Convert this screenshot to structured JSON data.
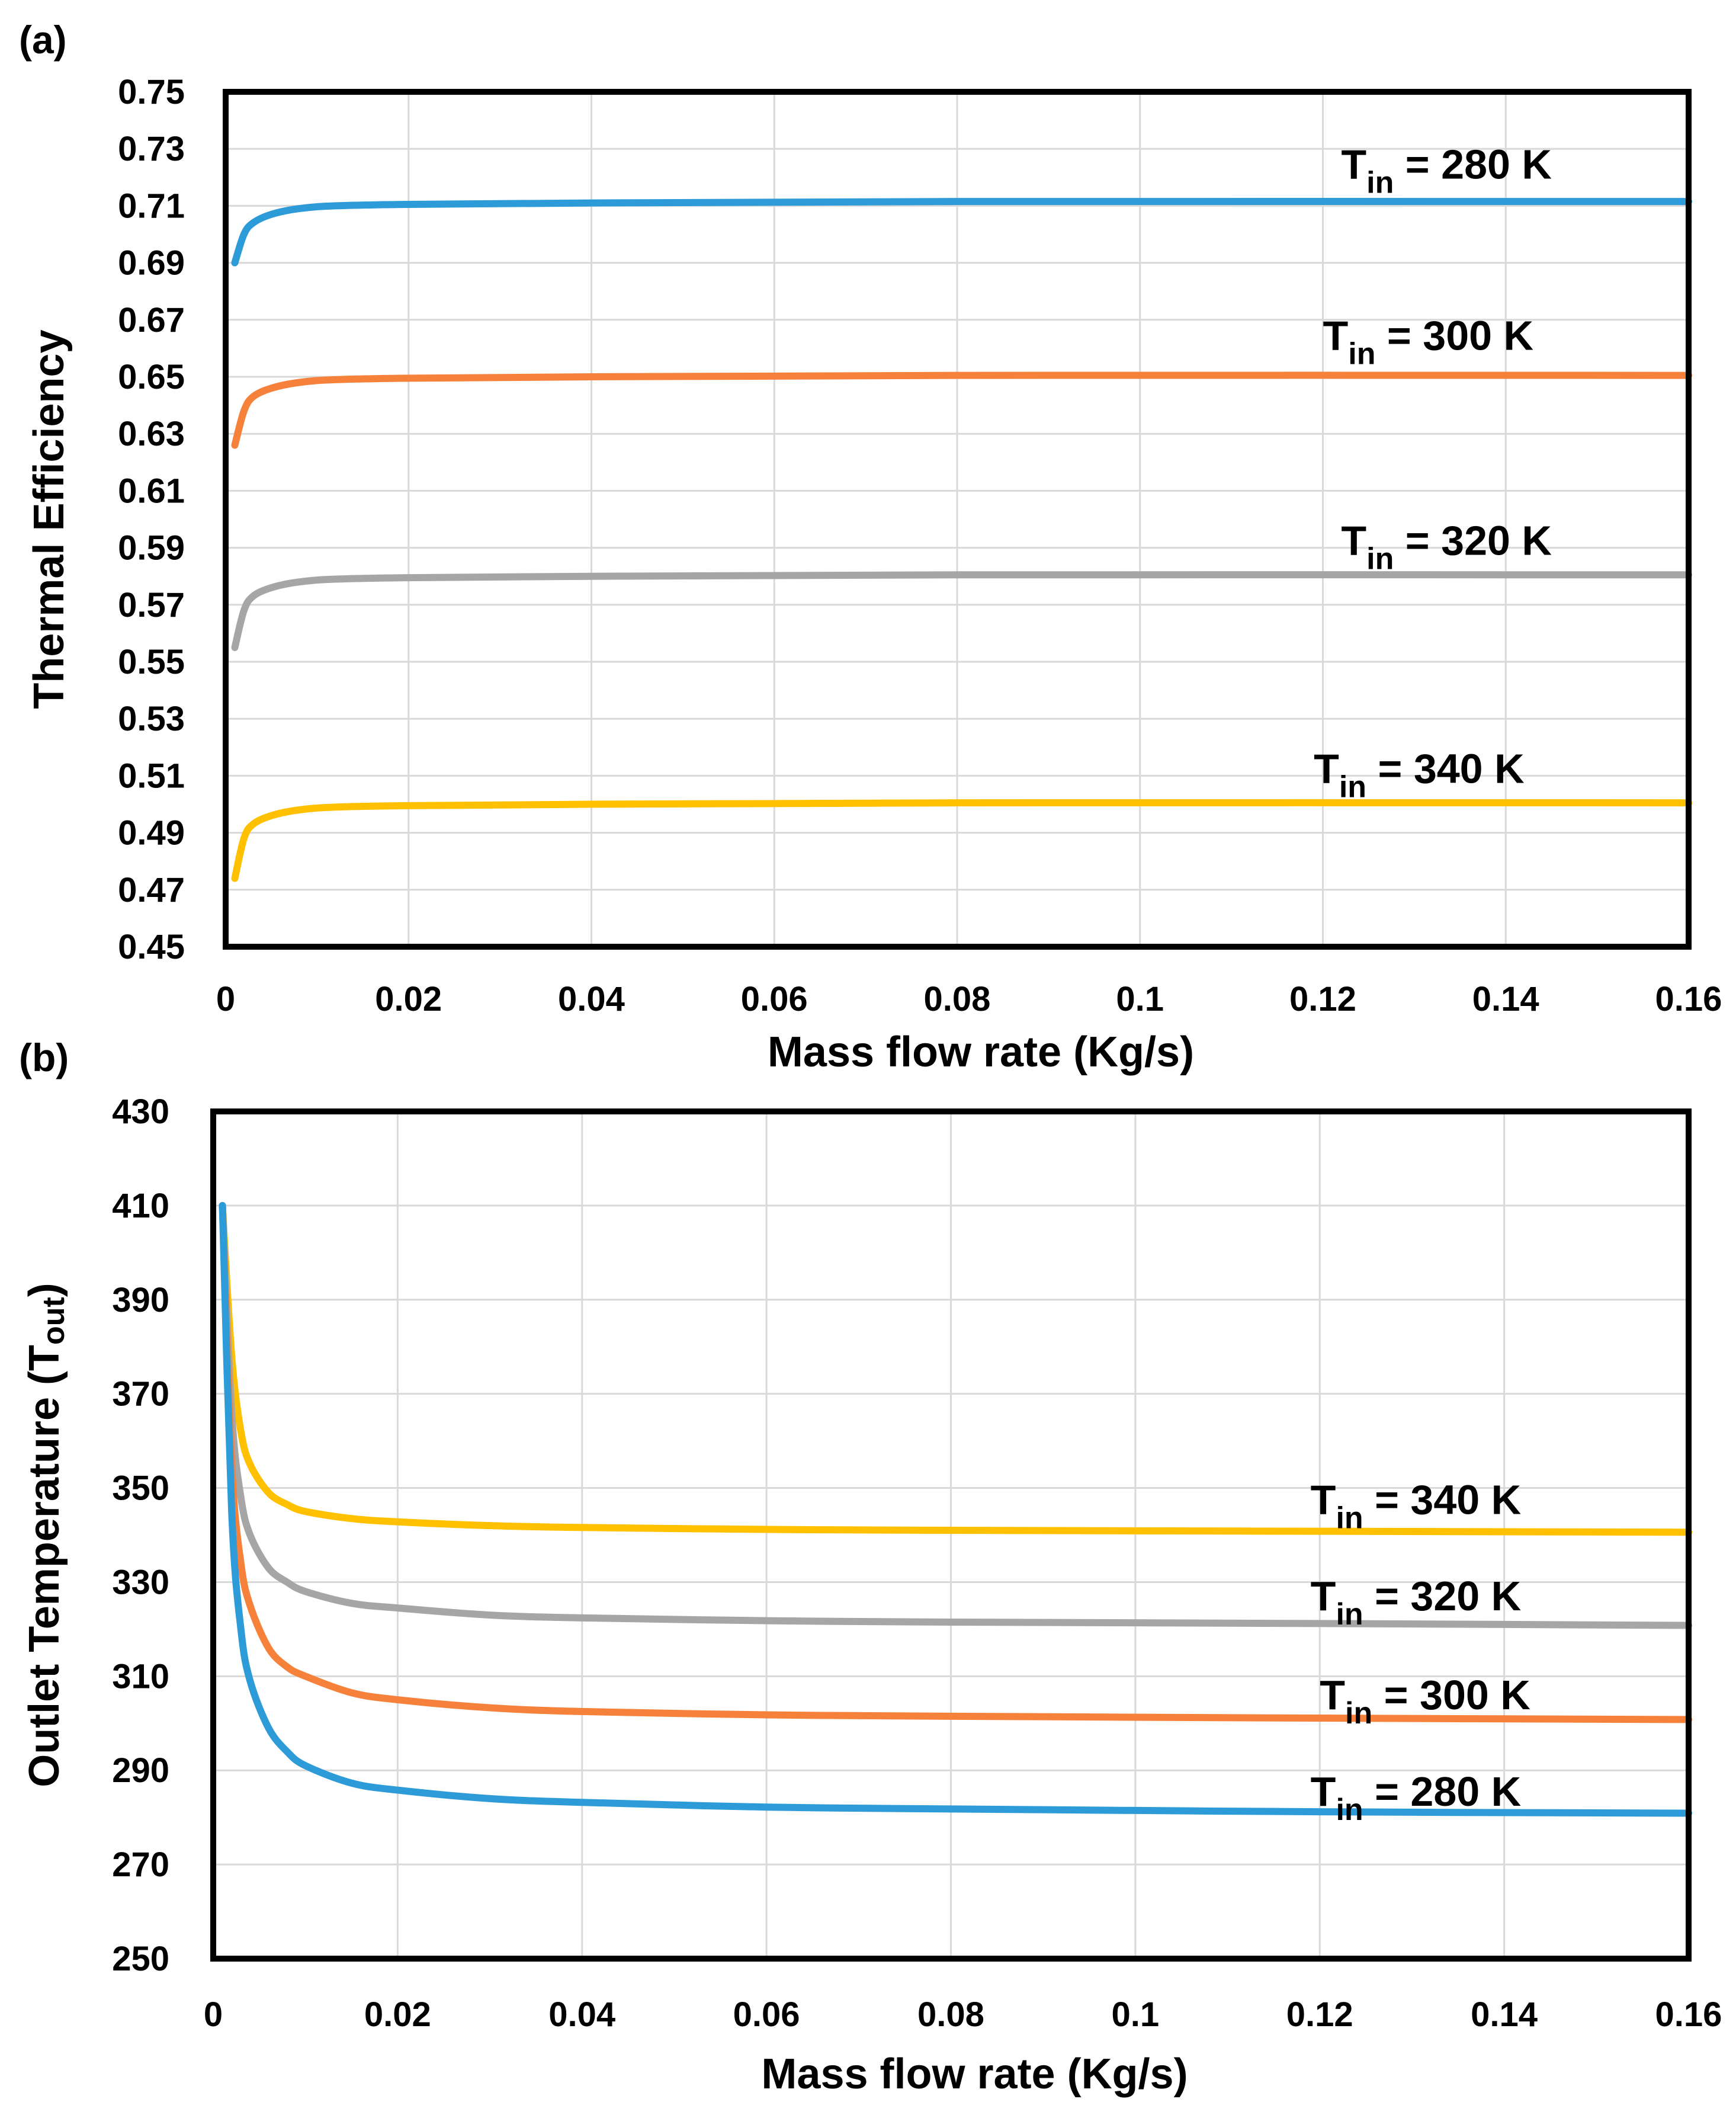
{
  "chart_data": [
    {
      "panel_label": "(a)",
      "type": "line",
      "xlabel": "Mass flow rate (Kg/s)",
      "ylabel": "Thermal Efficiency",
      "xlim": [
        0,
        0.16
      ],
      "ylim": [
        0.45,
        0.75
      ],
      "xticks": [
        0,
        0.02,
        0.04,
        0.06,
        0.08,
        0.1,
        0.12,
        0.14,
        0.16
      ],
      "xtick_labels": [
        "0",
        "0.02",
        "0.04",
        "0.06",
        "0.08",
        "0.1",
        "0.12",
        "0.14",
        "0.16"
      ],
      "yticks": [
        0.45,
        0.47,
        0.49,
        0.51,
        0.53,
        0.55,
        0.57,
        0.59,
        0.61,
        0.63,
        0.65,
        0.67,
        0.69,
        0.71,
        0.73,
        0.75
      ],
      "ytick_labels": [
        "0.45",
        "0.47",
        "0.49",
        "0.51",
        "0.53",
        "0.55",
        "0.57",
        "0.59",
        "0.61",
        "0.63",
        "0.65",
        "0.67",
        "0.69",
        "0.71",
        "0.73",
        "0.75"
      ],
      "grid": true,
      "series": [
        {
          "name": "Tin = 280 K",
          "label_main": "T",
          "label_sub": "in",
          "label_rest": " = 280 K",
          "color": "#2E9BD9",
          "x": [
            0.001,
            0.002,
            0.003,
            0.005,
            0.008,
            0.012,
            0.02,
            0.04,
            0.08,
            0.16
          ],
          "y": [
            0.69,
            0.7,
            0.704,
            0.707,
            0.709,
            0.71,
            0.7105,
            0.711,
            0.7115,
            0.7115
          ]
        },
        {
          "name": "Tin = 300 K",
          "label_main": "T",
          "label_sub": "in",
          "label_rest": " = 300 K",
          "color": "#F5813A",
          "x": [
            0.001,
            0.002,
            0.003,
            0.005,
            0.008,
            0.012,
            0.02,
            0.04,
            0.08,
            0.16
          ],
          "y": [
            0.626,
            0.638,
            0.643,
            0.646,
            0.648,
            0.649,
            0.6495,
            0.65,
            0.6505,
            0.6505
          ]
        },
        {
          "name": "Tin = 320 K",
          "label_main": "T",
          "label_sub": "in",
          "label_rest": " = 320 K",
          "color": "#A6A6A6",
          "x": [
            0.001,
            0.002,
            0.003,
            0.005,
            0.008,
            0.012,
            0.02,
            0.04,
            0.08,
            0.16
          ],
          "y": [
            0.555,
            0.568,
            0.573,
            0.576,
            0.578,
            0.579,
            0.5795,
            0.58,
            0.5805,
            0.5805
          ]
        },
        {
          "name": "Tin = 340 K",
          "label_main": "T",
          "label_sub": "in",
          "label_rest": " = 340 K",
          "color": "#FFC000",
          "x": [
            0.001,
            0.002,
            0.003,
            0.005,
            0.008,
            0.012,
            0.02,
            0.04,
            0.08,
            0.16
          ],
          "y": [
            0.474,
            0.488,
            0.493,
            0.496,
            0.498,
            0.499,
            0.4995,
            0.5,
            0.5005,
            0.5005
          ]
        }
      ],
      "label_positions": [
        {
          "series": 0,
          "x": 0.122,
          "y": 0.7195
        },
        {
          "series": 1,
          "x": 0.12,
          "y": 0.6595
        },
        {
          "series": 2,
          "x": 0.122,
          "y": 0.5875
        },
        {
          "series": 3,
          "x": 0.119,
          "y": 0.5075
        }
      ]
    },
    {
      "panel_label": "(b)",
      "type": "line",
      "xlabel": "Mass flow rate (Kg/s)",
      "ylabel_main": "Outlet Temperature  (T",
      "ylabel_sub": "out",
      "ylabel_end": ")",
      "xlim": [
        0,
        0.16
      ],
      "ylim": [
        250,
        430
      ],
      "xticks": [
        0,
        0.02,
        0.04,
        0.06,
        0.08,
        0.1,
        0.12,
        0.14,
        0.16
      ],
      "xtick_labels": [
        "0",
        "0.02",
        "0.04",
        "0.06",
        "0.08",
        "0.1",
        "0.12",
        "0.14",
        "0.16"
      ],
      "yticks": [
        250,
        270,
        290,
        310,
        330,
        350,
        370,
        390,
        410,
        430
      ],
      "ytick_labels": [
        "250",
        "270",
        "290",
        "310",
        "330",
        "350",
        "370",
        "390",
        "410",
        "430"
      ],
      "grid": true,
      "series": [
        {
          "name": "Tin = 340 K",
          "label_main": "T",
          "label_sub": "in",
          "label_rest": " = 340 K",
          "color": "#FFC000",
          "x": [
            0.001,
            0.002,
            0.003,
            0.004,
            0.006,
            0.008,
            0.01,
            0.015,
            0.02,
            0.03,
            0.04,
            0.06,
            0.08,
            0.12,
            0.16
          ],
          "y": [
            410,
            378,
            362,
            355,
            349,
            346.5,
            345,
            343.5,
            342.8,
            342,
            341.6,
            341.2,
            341,
            340.8,
            340.6
          ]
        },
        {
          "name": "Tin = 320 K",
          "label_main": "T",
          "label_sub": "in",
          "label_rest": " = 320 K",
          "color": "#A6A6A6",
          "x": [
            0.001,
            0.002,
            0.003,
            0.004,
            0.006,
            0.008,
            0.01,
            0.015,
            0.02,
            0.03,
            0.04,
            0.06,
            0.08,
            0.12,
            0.16
          ],
          "y": [
            410,
            366,
            348,
            340,
            333,
            330,
            328,
            325.5,
            324.5,
            323,
            322.4,
            321.8,
            321.5,
            321.2,
            320.8
          ]
        },
        {
          "name": "Tin = 300 K",
          "label_main": "T",
          "label_sub": "in",
          "label_rest": " = 300 K",
          "color": "#F5813A",
          "x": [
            0.001,
            0.002,
            0.003,
            0.004,
            0.006,
            0.008,
            0.01,
            0.015,
            0.02,
            0.03,
            0.04,
            0.06,
            0.08,
            0.12,
            0.16
          ],
          "y": [
            410,
            355,
            334,
            325,
            316,
            312,
            310,
            306.5,
            305,
            303.3,
            302.5,
            301.8,
            301.5,
            301.1,
            300.8
          ]
        },
        {
          "name": "Tin = 280 K",
          "label_main": "T",
          "label_sub": "in",
          "label_rest": " = 280 K",
          "color": "#2E9BD9",
          "x": [
            0.001,
            0.002,
            0.003,
            0.004,
            0.006,
            0.008,
            0.01,
            0.015,
            0.02,
            0.03,
            0.04,
            0.06,
            0.08,
            0.12,
            0.16
          ],
          "y": [
            410,
            345,
            320,
            309,
            299,
            294,
            291,
            287.3,
            285.8,
            284,
            283.2,
            282.2,
            281.8,
            281.2,
            280.9
          ]
        }
      ],
      "label_positions": [
        {
          "series": 0,
          "x": 0.119,
          "y": 344.5
        },
        {
          "series": 1,
          "x": 0.119,
          "y": 324
        },
        {
          "series": 2,
          "x": 0.12,
          "y": 303
        },
        {
          "series": 3,
          "x": 0.119,
          "y": 282.5
        }
      ]
    }
  ]
}
